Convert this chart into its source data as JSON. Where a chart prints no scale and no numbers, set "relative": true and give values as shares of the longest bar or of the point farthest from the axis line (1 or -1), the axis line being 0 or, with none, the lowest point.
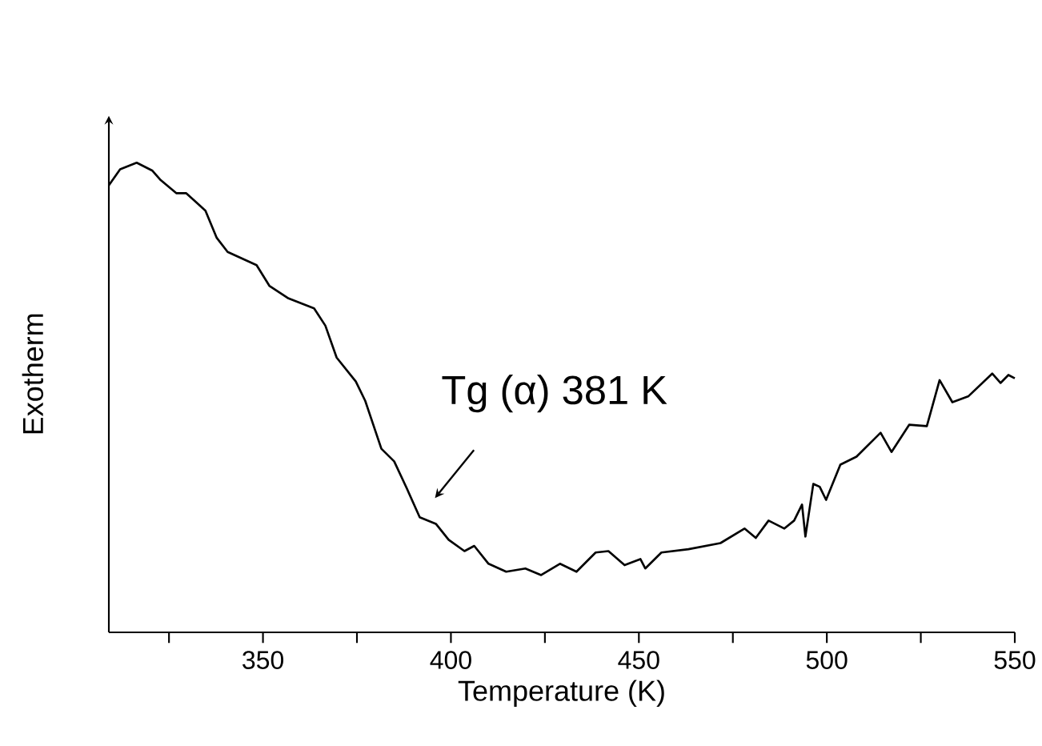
{
  "chart_data": {
    "type": "line",
    "relative": true,
    "xlabel": "Temperature (K)",
    "ylabel": "Exotherm",
    "color": "#000000",
    "xlim": [
      309,
      550
    ],
    "xticks": [
      {
        "value": 325,
        "label": null
      },
      350,
      {
        "value": 375,
        "label": null
      },
      400,
      {
        "value": 425,
        "label": null
      },
      450,
      {
        "value": 475,
        "label": null
      },
      500,
      {
        "value": 525,
        "label": null
      },
      550
    ],
    "annotations": [
      "Tg (α) 381 K"
    ],
    "x": [
      309,
      312,
      316.4,
      320.6,
      322.8,
      327,
      329.6,
      334.7,
      337.7,
      340.6,
      348.3,
      351.7,
      356.8,
      363.6,
      366.6,
      369.6,
      374.7,
      377.2,
      381.5,
      384.9,
      388.3,
      391.7,
      396,
      399.4,
      403.6,
      406.2,
      410,
      414.7,
      419.8,
      424,
      429,
      433.4,
      438.5,
      441.9,
      446.2,
      450.4,
      451.7,
      456,
      463.2,
      471.7,
      478.1,
      481.1,
      484.5,
      488.7,
      491.3,
      493.4,
      494.3,
      496.4,
      498.1,
      499.8,
      503.6,
      507.9,
      514.3,
      517.2,
      521.9,
      526.6,
      530,
      533.4,
      537.7,
      544,
      546.2,
      548.3,
      550
    ],
    "values": [
      0.952,
      0.986,
      1.0,
      0.983,
      0.963,
      0.935,
      0.935,
      0.898,
      0.84,
      0.81,
      0.782,
      0.738,
      0.711,
      0.69,
      0.653,
      0.585,
      0.534,
      0.493,
      0.391,
      0.364,
      0.306,
      0.245,
      0.231,
      0.197,
      0.173,
      0.184,
      0.146,
      0.129,
      0.136,
      0.122,
      0.146,
      0.129,
      0.17,
      0.173,
      0.143,
      0.156,
      0.136,
      0.17,
      0.177,
      0.19,
      0.221,
      0.201,
      0.238,
      0.221,
      0.238,
      0.272,
      0.204,
      0.316,
      0.31,
      0.282,
      0.357,
      0.374,
      0.425,
      0.384,
      0.442,
      0.439,
      0.537,
      0.49,
      0.503,
      0.551,
      0.531,
      0.548,
      0.541
    ]
  }
}
